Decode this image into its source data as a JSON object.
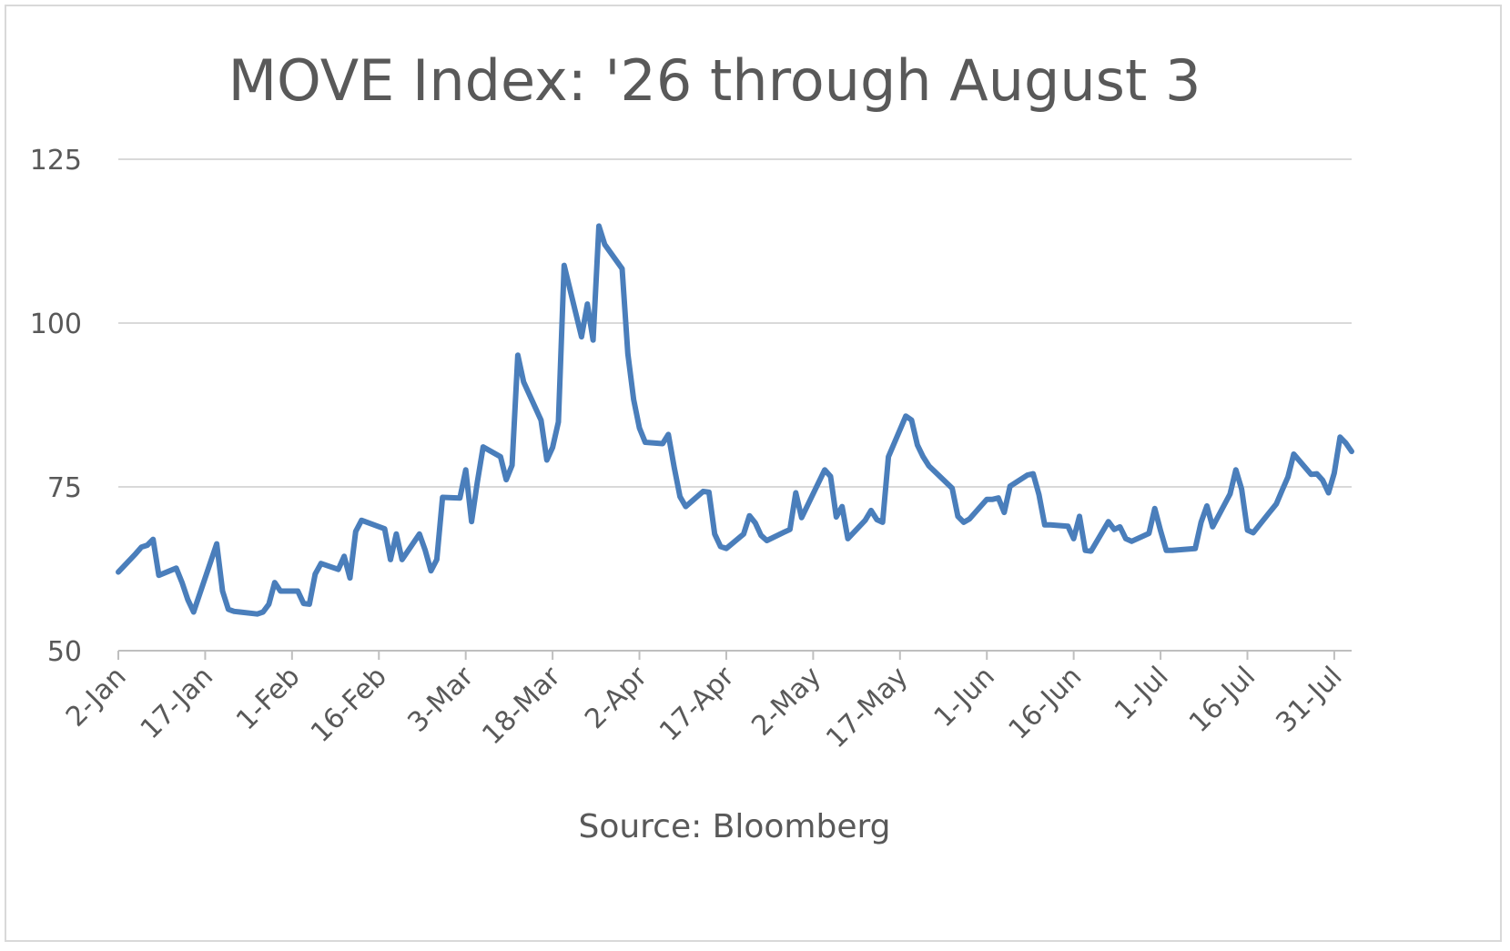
{
  "chart_data": {
    "type": "line",
    "title": "MOVE Index: '26 through August 3",
    "xlabel": "Source: Bloomberg",
    "ylabel": "",
    "ylim": [
      50,
      125
    ],
    "yticks": [
      50,
      75,
      100,
      125
    ],
    "xticks": [
      "2-Jan",
      "17-Jan",
      "1-Feb",
      "16-Feb",
      "3-Mar",
      "18-Mar",
      "2-Apr",
      "17-Apr",
      "2-May",
      "17-May",
      "1-Jun",
      "16-Jun",
      "1-Jul",
      "16-Jul",
      "31-Jul"
    ],
    "xlim": [
      "2026-01-02",
      "2026-08-03"
    ],
    "grid": "horizontal",
    "legend": "none",
    "line_color": "#4a7ebb",
    "series": [
      {
        "values": [
          [
            "2026-01-02",
            62.0
          ],
          [
            "2026-01-05",
            64.8
          ],
          [
            "2026-01-06",
            65.8
          ],
          [
            "2026-01-07",
            66.1
          ],
          [
            "2026-01-08",
            67.0
          ],
          [
            "2026-01-09",
            61.5
          ],
          [
            "2026-01-12",
            62.6
          ],
          [
            "2026-01-13",
            60.4
          ],
          [
            "2026-01-14",
            57.8
          ],
          [
            "2026-01-15",
            55.9
          ],
          [
            "2026-01-19",
            66.3
          ],
          [
            "2026-01-20",
            59.1
          ],
          [
            "2026-01-21",
            56.3
          ],
          [
            "2026-01-22",
            56.0
          ],
          [
            "2026-01-23",
            55.9
          ],
          [
            "2026-01-26",
            55.6
          ],
          [
            "2026-01-27",
            55.9
          ],
          [
            "2026-01-28",
            57.1
          ],
          [
            "2026-01-29",
            60.4
          ],
          [
            "2026-01-30",
            59.1
          ],
          [
            "2026-02-02",
            59.1
          ],
          [
            "2026-02-03",
            57.2
          ],
          [
            "2026-02-04",
            57.1
          ],
          [
            "2026-02-05",
            61.7
          ],
          [
            "2026-02-06",
            63.3
          ],
          [
            "2026-02-09",
            62.4
          ],
          [
            "2026-02-10",
            64.4
          ],
          [
            "2026-02-11",
            61.1
          ],
          [
            "2026-02-12",
            68.2
          ],
          [
            "2026-02-13",
            69.9
          ],
          [
            "2026-02-17",
            68.6
          ],
          [
            "2026-02-18",
            63.9
          ],
          [
            "2026-02-19",
            67.8
          ],
          [
            "2026-02-20",
            63.9
          ],
          [
            "2026-02-23",
            67.8
          ],
          [
            "2026-02-24",
            65.3
          ],
          [
            "2026-02-25",
            62.2
          ],
          [
            "2026-02-26",
            63.9
          ],
          [
            "2026-02-27",
            73.4
          ],
          [
            "2026-03-02",
            73.3
          ],
          [
            "2026-03-03",
            77.6
          ],
          [
            "2026-03-04",
            69.7
          ],
          [
            "2026-03-05",
            75.7
          ],
          [
            "2026-03-06",
            81.1
          ],
          [
            "2026-03-09",
            79.6
          ],
          [
            "2026-03-10",
            76.1
          ],
          [
            "2026-03-11",
            78.3
          ],
          [
            "2026-03-12",
            95.1
          ],
          [
            "2026-03-13",
            91.0
          ],
          [
            "2026-03-16",
            85.2
          ],
          [
            "2026-03-17",
            79.1
          ],
          [
            "2026-03-18",
            81.0
          ],
          [
            "2026-03-19",
            84.9
          ],
          [
            "2026-03-20",
            108.8
          ],
          [
            "2026-03-23",
            97.9
          ],
          [
            "2026-03-24",
            102.9
          ],
          [
            "2026-03-25",
            97.4
          ],
          [
            "2026-03-26",
            114.8
          ],
          [
            "2026-03-27",
            112.0
          ],
          [
            "2026-03-30",
            108.3
          ],
          [
            "2026-03-31",
            95.3
          ],
          [
            "2026-04-01",
            88.3
          ],
          [
            "2026-04-02",
            84.0
          ],
          [
            "2026-04-03",
            81.8
          ],
          [
            "2026-04-06",
            81.6
          ],
          [
            "2026-04-07",
            83.0
          ],
          [
            "2026-04-08",
            78.0
          ],
          [
            "2026-04-09",
            73.5
          ],
          [
            "2026-04-10",
            72.0
          ],
          [
            "2026-04-13",
            74.3
          ],
          [
            "2026-04-14",
            74.2
          ],
          [
            "2026-04-15",
            67.8
          ],
          [
            "2026-04-16",
            65.9
          ],
          [
            "2026-04-17",
            65.6
          ],
          [
            "2026-04-20",
            67.8
          ],
          [
            "2026-04-21",
            70.6
          ],
          [
            "2026-04-22",
            69.5
          ],
          [
            "2026-04-23",
            67.6
          ],
          [
            "2026-04-24",
            66.8
          ],
          [
            "2026-04-27",
            68.1
          ],
          [
            "2026-04-28",
            68.5
          ],
          [
            "2026-04-29",
            74.1
          ],
          [
            "2026-04-30",
            70.3
          ],
          [
            "2026-05-04",
            77.6
          ],
          [
            "2026-05-05",
            76.6
          ],
          [
            "2026-05-06",
            70.4
          ],
          [
            "2026-05-07",
            72.0
          ],
          [
            "2026-05-08",
            67.1
          ],
          [
            "2026-05-11",
            69.9
          ],
          [
            "2026-05-12",
            71.4
          ],
          [
            "2026-05-13",
            70.0
          ],
          [
            "2026-05-14",
            69.6
          ],
          [
            "2026-05-15",
            79.6
          ],
          [
            "2026-05-18",
            85.8
          ],
          [
            "2026-05-19",
            85.2
          ],
          [
            "2026-05-20",
            81.4
          ],
          [
            "2026-05-21",
            79.6
          ],
          [
            "2026-05-22",
            78.2
          ],
          [
            "2026-05-26",
            74.8
          ],
          [
            "2026-05-27",
            70.5
          ],
          [
            "2026-05-28",
            69.6
          ],
          [
            "2026-05-29",
            70.1
          ],
          [
            "2026-06-01",
            73.1
          ],
          [
            "2026-06-02",
            73.1
          ],
          [
            "2026-06-03",
            73.3
          ],
          [
            "2026-06-04",
            71.1
          ],
          [
            "2026-06-05",
            75.1
          ],
          [
            "2026-06-08",
            76.8
          ],
          [
            "2026-06-09",
            77.0
          ],
          [
            "2026-06-10",
            73.8
          ],
          [
            "2026-06-11",
            69.2
          ],
          [
            "2026-06-12",
            69.2
          ],
          [
            "2026-06-15",
            69.0
          ],
          [
            "2026-06-16",
            67.1
          ],
          [
            "2026-06-17",
            70.5
          ],
          [
            "2026-06-18",
            65.3
          ],
          [
            "2026-06-19",
            65.2
          ],
          [
            "2026-06-22",
            69.7
          ],
          [
            "2026-06-23",
            68.5
          ],
          [
            "2026-06-24",
            68.9
          ],
          [
            "2026-06-25",
            67.1
          ],
          [
            "2026-06-26",
            66.7
          ],
          [
            "2026-06-29",
            67.9
          ],
          [
            "2026-06-30",
            71.7
          ],
          [
            "2026-07-01",
            68.3
          ],
          [
            "2026-07-02",
            65.3
          ],
          [
            "2026-07-03",
            65.3
          ],
          [
            "2026-07-07",
            65.6
          ],
          [
            "2026-07-08",
            69.6
          ],
          [
            "2026-07-09",
            72.1
          ],
          [
            "2026-07-10",
            68.9
          ],
          [
            "2026-07-13",
            73.9
          ],
          [
            "2026-07-14",
            77.6
          ],
          [
            "2026-07-15",
            74.7
          ],
          [
            "2026-07-16",
            68.4
          ],
          [
            "2026-07-17",
            68.0
          ],
          [
            "2026-07-20",
            71.3
          ],
          [
            "2026-07-21",
            72.4
          ],
          [
            "2026-07-22",
            74.5
          ],
          [
            "2026-07-23",
            76.5
          ],
          [
            "2026-07-24",
            80.0
          ],
          [
            "2026-07-27",
            76.9
          ],
          [
            "2026-07-28",
            77.0
          ],
          [
            "2026-07-29",
            76.0
          ],
          [
            "2026-07-30",
            74.1
          ],
          [
            "2026-07-31",
            77.1
          ],
          [
            "2026-08-01",
            82.6
          ],
          [
            "2026-08-02",
            81.7
          ],
          [
            "2026-08-03",
            80.4
          ]
        ]
      }
    ]
  }
}
